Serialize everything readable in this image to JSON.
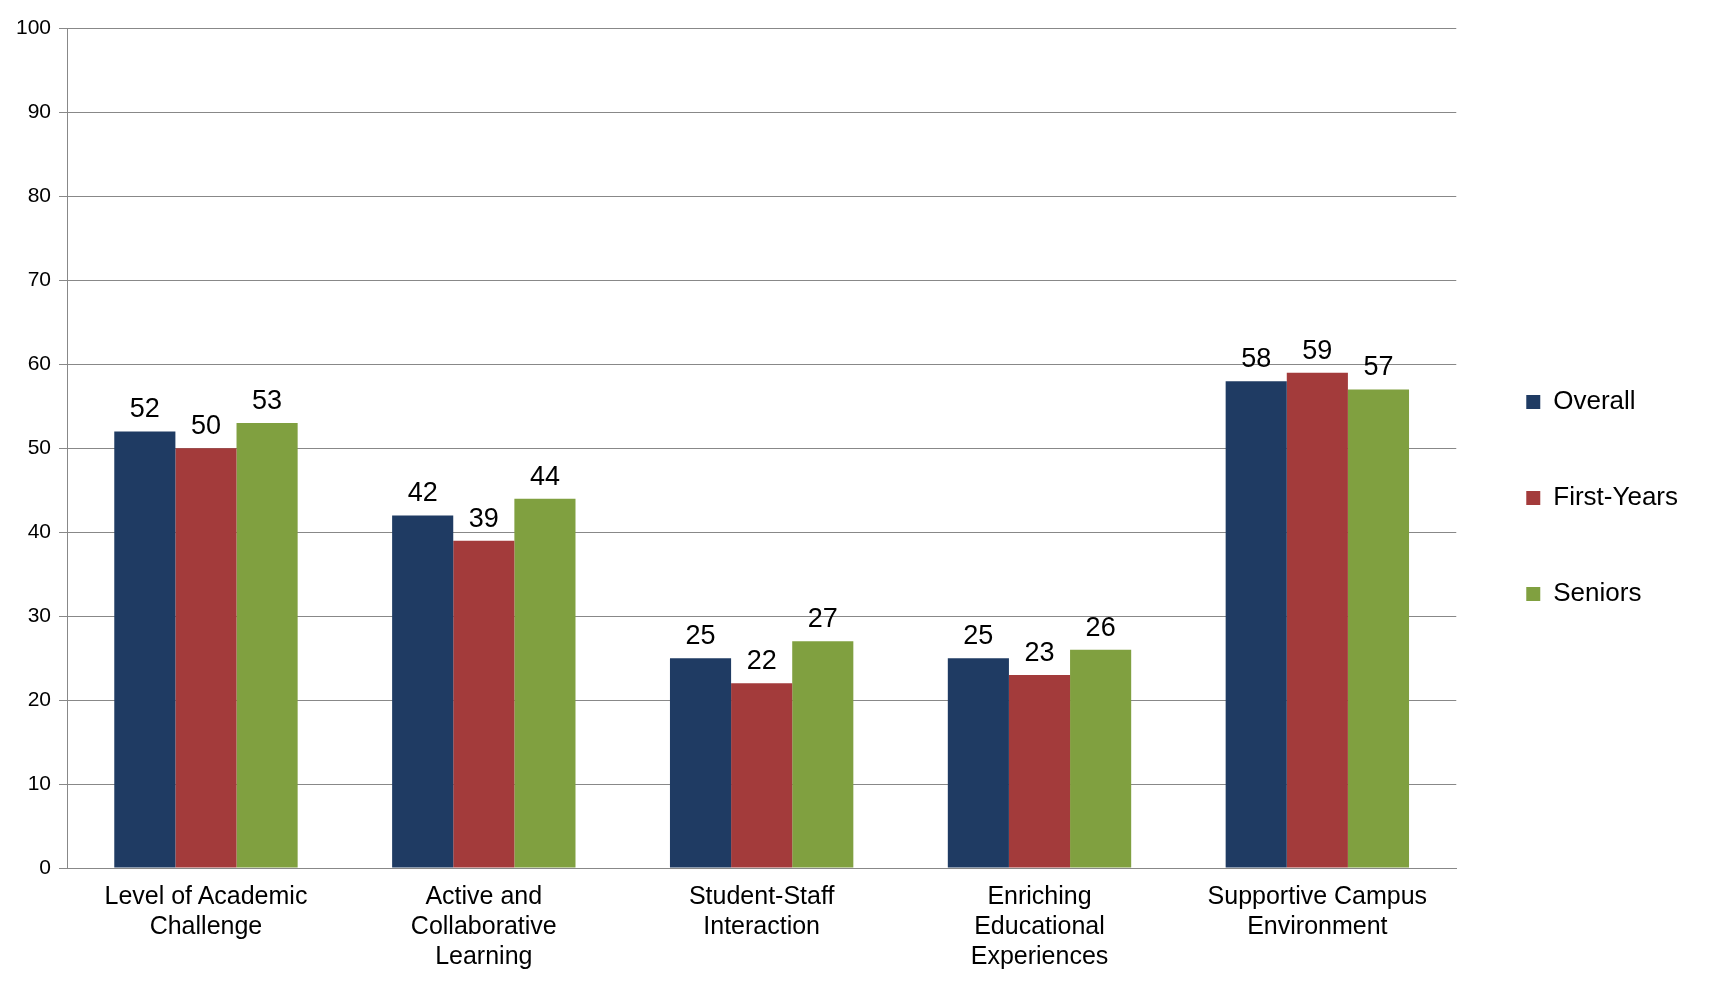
{
  "chart_data": {
    "type": "bar",
    "categories": [
      "Level of Academic Challenge",
      "Active and Collaborative Learning",
      "Student-Staff Interaction",
      "Enriching Educational Experiences",
      "Supportive Campus Environment"
    ],
    "series": [
      {
        "name": "Overall",
        "color": "#1f3b63",
        "values": [
          52,
          42,
          25,
          25,
          58
        ]
      },
      {
        "name": "First-Years",
        "color": "#a33b3b",
        "values": [
          50,
          39,
          22,
          23,
          59
        ]
      },
      {
        "name": "Seniors",
        "color": "#80a040",
        "values": [
          53,
          44,
          27,
          26,
          57
        ]
      }
    ],
    "ylim": [
      0,
      100
    ],
    "yticks": [
      0,
      10,
      20,
      30,
      40,
      50,
      60,
      70,
      80,
      90,
      100
    ],
    "grid": "y",
    "legend": "right",
    "data_labels": true
  }
}
